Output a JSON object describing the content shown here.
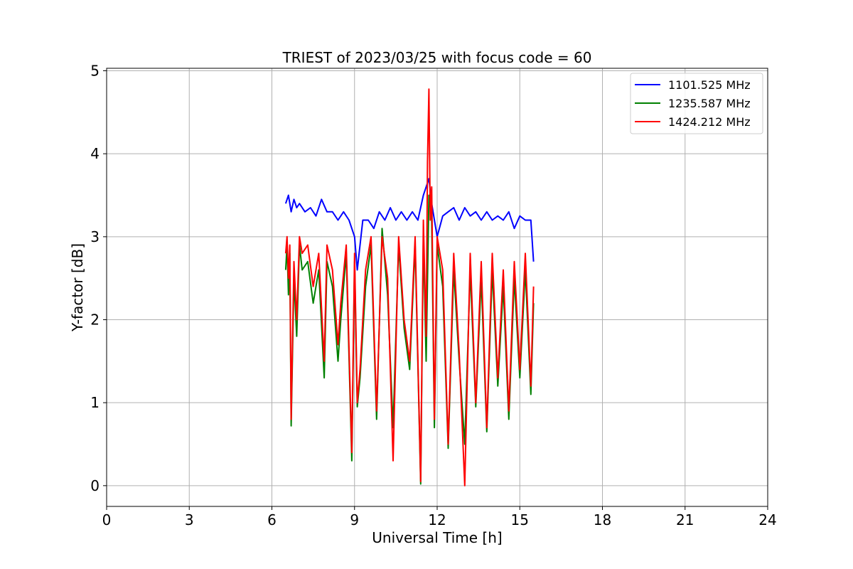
{
  "chart_data": {
    "type": "line",
    "title": "TRIEST of 2023/03/25 with focus code = 60",
    "xlabel": "Universal Time [h]",
    "ylabel": "Y-factor [dB]",
    "xlim": [
      0,
      24
    ],
    "ylim": [
      -0.25,
      5.03
    ],
    "xticks": [
      0,
      3,
      6,
      9,
      12,
      15,
      18,
      21,
      24
    ],
    "yticks": [
      0,
      1,
      2,
      3,
      4,
      5
    ],
    "grid": true,
    "legend_position": "top-right",
    "series": [
      {
        "name": "1101.525 MHz",
        "color": "#0000ff",
        "x": [
          6.5,
          6.6,
          6.7,
          6.8,
          6.9,
          7.0,
          7.2,
          7.4,
          7.6,
          7.8,
          8.0,
          8.2,
          8.4,
          8.6,
          8.8,
          9.0,
          9.1,
          9.3,
          9.5,
          9.7,
          9.9,
          10.1,
          10.3,
          10.5,
          10.7,
          10.9,
          11.1,
          11.3,
          11.5,
          11.7,
          11.8,
          12.0,
          12.2,
          12.4,
          12.6,
          12.8,
          13.0,
          13.2,
          13.4,
          13.6,
          13.8,
          14.0,
          14.2,
          14.4,
          14.6,
          14.8,
          15.0,
          15.2,
          15.4,
          15.5
        ],
        "y": [
          3.4,
          3.5,
          3.3,
          3.45,
          3.35,
          3.4,
          3.3,
          3.35,
          3.25,
          3.45,
          3.3,
          3.3,
          3.2,
          3.3,
          3.2,
          3.0,
          2.6,
          3.2,
          3.2,
          3.1,
          3.3,
          3.2,
          3.35,
          3.2,
          3.3,
          3.2,
          3.3,
          3.2,
          3.5,
          3.7,
          3.4,
          3.0,
          3.25,
          3.3,
          3.35,
          3.2,
          3.35,
          3.25,
          3.3,
          3.2,
          3.3,
          3.2,
          3.25,
          3.2,
          3.3,
          3.1,
          3.25,
          3.2,
          3.2,
          2.7
        ]
      },
      {
        "name": "1235.587 MHz",
        "color": "#008000",
        "x": [
          6.5,
          6.55,
          6.6,
          6.65,
          6.7,
          6.8,
          6.9,
          7.0,
          7.1,
          7.3,
          7.5,
          7.7,
          7.9,
          8.0,
          8.2,
          8.4,
          8.5,
          8.7,
          8.9,
          9.0,
          9.1,
          9.2,
          9.4,
          9.6,
          9.8,
          10.0,
          10.2,
          10.4,
          10.6,
          10.8,
          11.0,
          11.2,
          11.4,
          11.5,
          11.6,
          11.7,
          11.8,
          11.9,
          12.0,
          12.2,
          12.4,
          12.6,
          12.8,
          13.0,
          13.2,
          13.4,
          13.6,
          13.8,
          14.0,
          14.2,
          14.4,
          14.6,
          14.8,
          15.0,
          15.2,
          15.4,
          15.5
        ],
        "y": [
          2.6,
          2.9,
          2.3,
          2.8,
          0.72,
          2.5,
          1.8,
          2.9,
          2.6,
          2.7,
          2.2,
          2.6,
          1.3,
          2.7,
          2.4,
          1.5,
          2.0,
          2.8,
          0.3,
          2.7,
          0.95,
          1.3,
          2.4,
          2.9,
          0.8,
          3.1,
          2.3,
          0.7,
          2.9,
          1.9,
          1.4,
          2.9,
          0.02,
          3.0,
          1.5,
          3.5,
          3.2,
          0.7,
          2.9,
          2.4,
          0.45,
          2.6,
          1.5,
          0.5,
          2.6,
          0.95,
          2.5,
          0.65,
          2.6,
          1.2,
          2.4,
          0.8,
          2.5,
          1.3,
          2.6,
          1.1,
          2.2
        ]
      },
      {
        "name": "1424.212 MHz",
        "color": "#ff0000",
        "x": [
          6.5,
          6.55,
          6.6,
          6.65,
          6.7,
          6.8,
          6.9,
          7.0,
          7.1,
          7.3,
          7.5,
          7.7,
          7.9,
          8.0,
          8.2,
          8.4,
          8.5,
          8.7,
          8.9,
          9.0,
          9.1,
          9.2,
          9.4,
          9.6,
          9.8,
          10.0,
          10.2,
          10.4,
          10.6,
          10.8,
          11.0,
          11.2,
          11.4,
          11.5,
          11.6,
          11.65,
          11.7,
          11.75,
          11.8,
          11.9,
          12.0,
          12.2,
          12.4,
          12.6,
          12.8,
          13.0,
          13.2,
          13.4,
          13.6,
          13.8,
          14.0,
          14.2,
          14.4,
          14.6,
          14.8,
          15.0,
          15.2,
          15.4,
          15.5
        ],
        "y": [
          2.8,
          3.0,
          2.5,
          2.9,
          0.8,
          2.7,
          2.0,
          3.0,
          2.8,
          2.9,
          2.4,
          2.8,
          1.5,
          2.9,
          2.6,
          1.7,
          2.2,
          2.9,
          0.4,
          2.8,
          1.0,
          1.4,
          2.6,
          3.0,
          0.9,
          3.0,
          2.5,
          0.3,
          3.0,
          2.0,
          1.5,
          3.0,
          0.05,
          3.2,
          1.8,
          3.9,
          4.78,
          3.2,
          3.6,
          0.8,
          3.0,
          2.6,
          0.5,
          2.8,
          1.6,
          0.0,
          2.8,
          1.0,
          2.7,
          0.7,
          2.8,
          1.3,
          2.6,
          0.9,
          2.7,
          1.4,
          2.8,
          1.2,
          2.4
        ]
      }
    ]
  }
}
